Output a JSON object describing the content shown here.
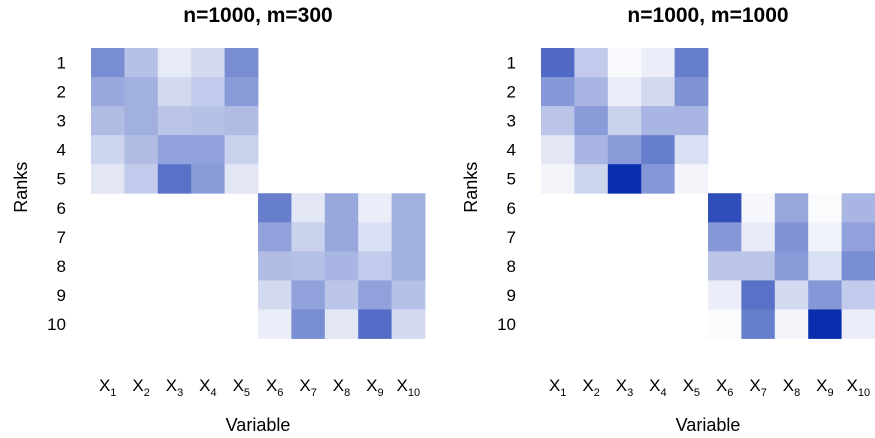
{
  "chart_data": [
    {
      "type": "heatmap",
      "title": "n=1000, m=300",
      "xlabel": "Variable",
      "ylabel": "Ranks",
      "x_labels": [
        {
          "base": "X",
          "sub": "1"
        },
        {
          "base": "X",
          "sub": "2"
        },
        {
          "base": "X",
          "sub": "3"
        },
        {
          "base": "X",
          "sub": "4"
        },
        {
          "base": "X",
          "sub": "5"
        },
        {
          "base": "X",
          "sub": "6"
        },
        {
          "base": "X",
          "sub": "7"
        },
        {
          "base": "X",
          "sub": "8"
        },
        {
          "base": "X",
          "sub": "9"
        },
        {
          "base": "X",
          "sub": "10"
        }
      ],
      "y_labels": [
        "1",
        "2",
        "3",
        "4",
        "5",
        "6",
        "7",
        "8",
        "9",
        "10"
      ],
      "values": [
        [
          0.55,
          0.3,
          0.1,
          0.18,
          0.55,
          null,
          null,
          null,
          null,
          null
        ],
        [
          0.42,
          0.38,
          0.18,
          0.25,
          0.48,
          null,
          null,
          null,
          null,
          null
        ],
        [
          0.32,
          0.38,
          0.28,
          0.3,
          0.32,
          null,
          null,
          null,
          null,
          null
        ],
        [
          0.2,
          0.32,
          0.45,
          0.45,
          0.22,
          null,
          null,
          null,
          null,
          null
        ],
        [
          0.12,
          0.25,
          0.68,
          0.48,
          0.12,
          null,
          null,
          null,
          null,
          null
        ],
        [
          null,
          null,
          null,
          null,
          null,
          0.62,
          0.12,
          0.42,
          0.08,
          0.38
        ],
        [
          null,
          null,
          null,
          null,
          null,
          0.45,
          0.22,
          0.42,
          0.15,
          0.38
        ],
        [
          null,
          null,
          null,
          null,
          null,
          0.32,
          0.3,
          0.35,
          0.25,
          0.38
        ],
        [
          null,
          null,
          null,
          null,
          null,
          0.18,
          0.45,
          0.28,
          0.45,
          0.3
        ],
        [
          null,
          null,
          null,
          null,
          null,
          0.08,
          0.55,
          0.12,
          0.7,
          0.18
        ]
      ],
      "color_low": "#ffffff",
      "color_high": "#0a2fae",
      "grid": false
    },
    {
      "type": "heatmap",
      "title": "n=1000, m=1000",
      "xlabel": "Variable",
      "ylabel": "Ranks",
      "x_labels": [
        {
          "base": "X",
          "sub": "1"
        },
        {
          "base": "X",
          "sub": "2"
        },
        {
          "base": "X",
          "sub": "3"
        },
        {
          "base": "X",
          "sub": "4"
        },
        {
          "base": "X",
          "sub": "5"
        },
        {
          "base": "X",
          "sub": "6"
        },
        {
          "base": "X",
          "sub": "7"
        },
        {
          "base": "X",
          "sub": "8"
        },
        {
          "base": "X",
          "sub": "9"
        },
        {
          "base": "X",
          "sub": "10"
        }
      ],
      "y_labels": [
        "1",
        "2",
        "3",
        "4",
        "5",
        "6",
        "7",
        "8",
        "9",
        "10"
      ],
      "values": [
        [
          0.72,
          0.25,
          0.03,
          0.08,
          0.62,
          null,
          null,
          null,
          null,
          null
        ],
        [
          0.5,
          0.35,
          0.08,
          0.18,
          0.52,
          null,
          null,
          null,
          null,
          null
        ],
        [
          0.28,
          0.48,
          0.22,
          0.35,
          0.35,
          null,
          null,
          null,
          null,
          null
        ],
        [
          0.12,
          0.35,
          0.48,
          0.62,
          0.15,
          null,
          null,
          null,
          null,
          null
        ],
        [
          0.05,
          0.2,
          1.0,
          0.5,
          0.05,
          null,
          null,
          null,
          null,
          null
        ],
        [
          null,
          null,
          null,
          null,
          null,
          0.85,
          0.04,
          0.42,
          0.02,
          0.35
        ],
        [
          null,
          null,
          null,
          null,
          null,
          0.5,
          0.1,
          0.52,
          0.06,
          0.45
        ],
        [
          null,
          null,
          null,
          null,
          null,
          0.28,
          0.28,
          0.48,
          0.15,
          0.55
        ],
        [
          null,
          null,
          null,
          null,
          null,
          0.08,
          0.68,
          0.18,
          0.5,
          0.25
        ],
        [
          null,
          null,
          null,
          null,
          null,
          0.02,
          0.62,
          0.05,
          1.0,
          0.08
        ]
      ],
      "color_low": "#ffffff",
      "color_high": "#0a2fae",
      "grid": false
    }
  ]
}
